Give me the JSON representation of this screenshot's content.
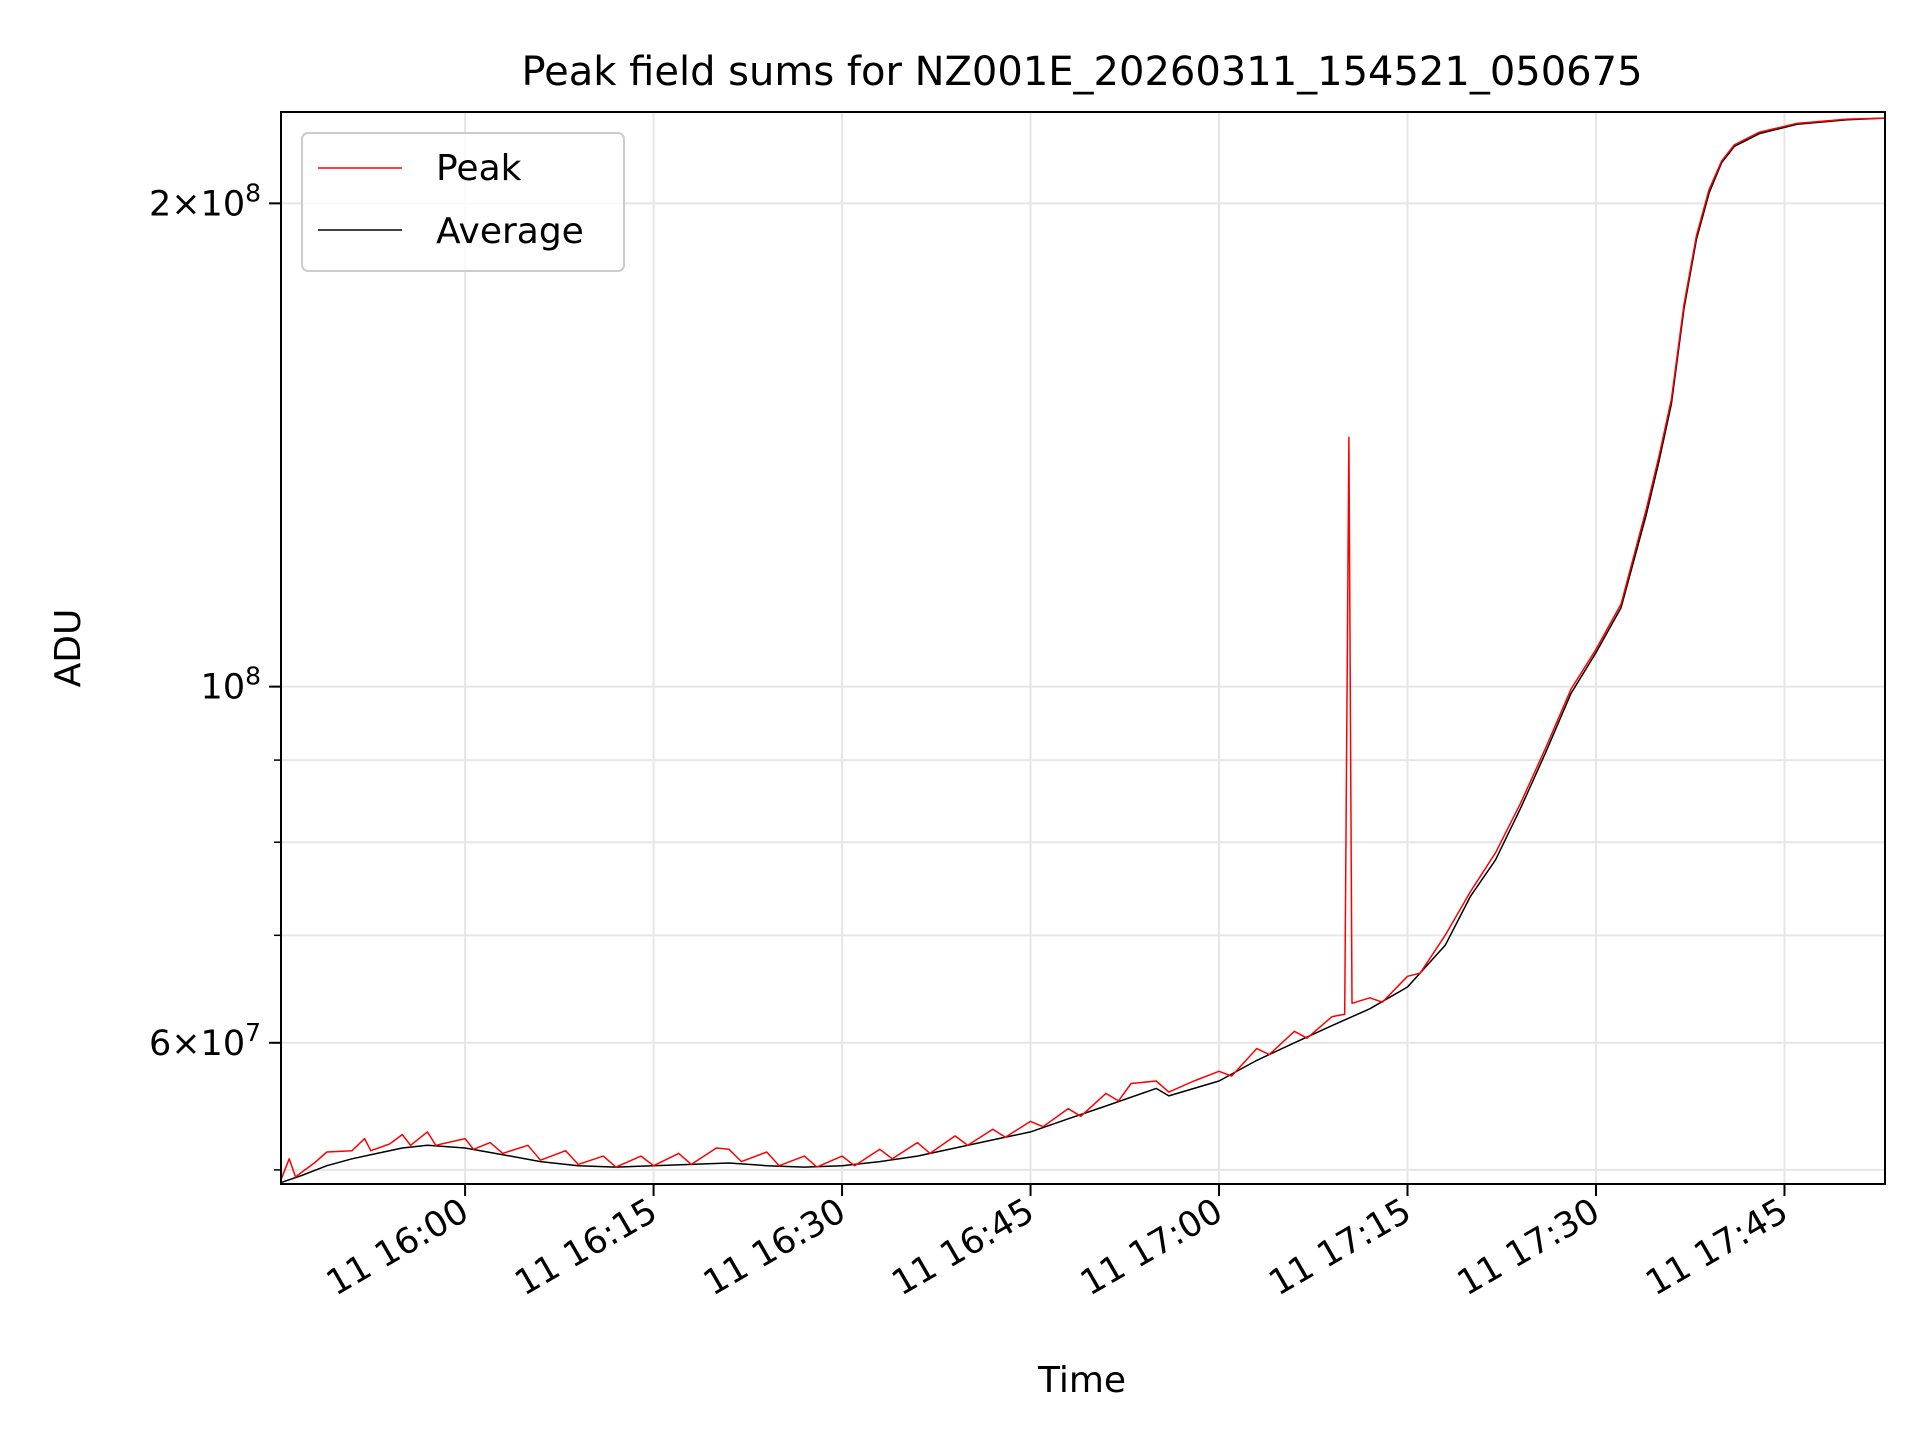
{
  "chart_data": {
    "type": "line",
    "title": "Peak field sums for NZ001E_20260311_154521_050675",
    "xlabel": "Time",
    "ylabel": "ADU",
    "xscale": "time",
    "yscale": "log",
    "xlim": [
      "2026-03-11 15:45:21",
      "2026-03-11 17:53:00"
    ],
    "ylim": [
      49000000,
      228000000
    ],
    "grid": true,
    "legend": "upper left",
    "xticks": [
      {
        "t": "2026-03-11 16:00",
        "label": "11 16:00"
      },
      {
        "t": "2026-03-11 16:15",
        "label": "11 16:15"
      },
      {
        "t": "2026-03-11 16:30",
        "label": "11 16:30"
      },
      {
        "t": "2026-03-11 16:45",
        "label": "11 16:45"
      },
      {
        "t": "2026-03-11 17:00",
        "label": "11 17:00"
      },
      {
        "t": "2026-03-11 17:15",
        "label": "11 17:15"
      },
      {
        "t": "2026-03-11 17:30",
        "label": "11 17:30"
      },
      {
        "t": "2026-03-11 17:45",
        "label": "11 17:45"
      }
    ],
    "yticks_major": [
      {
        "v": 60000000,
        "mant": "6",
        "exp": "7"
      },
      {
        "v": 100000000,
        "mant": "",
        "exp": "8"
      },
      {
        "v": 200000000,
        "mant": "2",
        "exp": "8"
      }
    ],
    "yticks_minor": [
      50000000,
      70000000,
      80000000,
      90000000
    ],
    "series": [
      {
        "name": "Average",
        "color": "#000000",
        "points": [
          [
            "2026-03-11 15:45:21",
            49100000.0
          ],
          [
            "2026-03-11 15:47:00",
            49600000.0
          ],
          [
            "2026-03-11 15:49:00",
            50300000.0
          ],
          [
            "2026-03-11 15:51:00",
            50800000.0
          ],
          [
            "2026-03-11 15:53:00",
            51200000.0
          ],
          [
            "2026-03-11 15:55:00",
            51600000.0
          ],
          [
            "2026-03-11 15:57:00",
            51800000.0
          ],
          [
            "2026-03-11 16:00:00",
            51600000.0
          ],
          [
            "2026-03-11 16:03:00",
            51100000.0
          ],
          [
            "2026-03-11 16:06:00",
            50600000.0
          ],
          [
            "2026-03-11 16:09:00",
            50300000.0
          ],
          [
            "2026-03-11 16:12:00",
            50200000.0
          ],
          [
            "2026-03-11 16:15:00",
            50300000.0
          ],
          [
            "2026-03-11 16:18:00",
            50400000.0
          ],
          [
            "2026-03-11 16:21:00",
            50500000.0
          ],
          [
            "2026-03-11 16:24:00",
            50300000.0
          ],
          [
            "2026-03-11 16:27:00",
            50200000.0
          ],
          [
            "2026-03-11 16:30:00",
            50300000.0
          ],
          [
            "2026-03-11 16:33:00",
            50600000.0
          ],
          [
            "2026-03-11 16:36:00",
            51000000.0
          ],
          [
            "2026-03-11 16:39:00",
            51600000.0
          ],
          [
            "2026-03-11 16:42:00",
            52200000.0
          ],
          [
            "2026-03-11 16:45:00",
            52800000.0
          ],
          [
            "2026-03-11 16:48:00",
            53800000.0
          ],
          [
            "2026-03-11 16:51:00",
            54800000.0
          ],
          [
            "2026-03-11 16:55:00",
            56200000.0
          ],
          [
            "2026-03-11 16:56:00",
            55600000.0
          ],
          [
            "2026-03-11 17:00:00",
            56800000.0
          ],
          [
            "2026-03-11 17:03:00",
            58500000.0
          ],
          [
            "2026-03-11 17:06:00",
            60000000.0
          ],
          [
            "2026-03-11 17:09:00",
            61500000.0
          ],
          [
            "2026-03-11 17:12:00",
            63000000.0
          ],
          [
            "2026-03-11 17:15:00",
            65000000.0
          ],
          [
            "2026-03-11 17:18:00",
            69000000.0
          ],
          [
            "2026-03-11 17:20:00",
            74000000.0
          ],
          [
            "2026-03-11 17:22:00",
            78000000.0
          ],
          [
            "2026-03-11 17:24:00",
            84000000.0
          ],
          [
            "2026-03-11 17:26:00",
            91000000.0
          ],
          [
            "2026-03-11 17:28:00",
            99000000.0
          ],
          [
            "2026-03-11 17:30:00",
            105000000.0
          ],
          [
            "2026-03-11 17:32:00",
            112000000.0
          ],
          [
            "2026-03-11 17:34:00",
            128000000.0
          ],
          [
            "2026-03-11 17:35:00",
            138000000.0
          ],
          [
            "2026-03-11 17:36:00",
            150000000.0
          ],
          [
            "2026-03-11 17:37:00",
            172000000.0
          ],
          [
            "2026-03-11 17:38:00",
            190000000.0
          ],
          [
            "2026-03-11 17:39:00",
            203000000.0
          ],
          [
            "2026-03-11 17:40:00",
            212000000.0
          ],
          [
            "2026-03-11 17:41:00",
            217000000.0
          ],
          [
            "2026-03-11 17:43:00",
            221000000.0
          ],
          [
            "2026-03-11 17:46:00",
            224000000.0
          ],
          [
            "2026-03-11 17:50:00",
            225500000.0
          ],
          [
            "2026-03-11 17:53:00",
            226000000.0
          ]
        ]
      },
      {
        "name": "Peak",
        "color": "#ff0000",
        "points": [
          [
            "2026-03-11 15:45:21",
            49300000.0
          ],
          [
            "2026-03-11 15:46:00",
            50800000.0
          ],
          [
            "2026-03-11 15:46:30",
            49500000.0
          ],
          [
            "2026-03-11 15:48:00",
            50500000.0
          ],
          [
            "2026-03-11 15:49:00",
            51300000.0
          ],
          [
            "2026-03-11 15:51:00",
            51400000.0
          ],
          [
            "2026-03-11 15:52:00",
            52300000.0
          ],
          [
            "2026-03-11 15:52:30",
            51400000.0
          ],
          [
            "2026-03-11 15:54:00",
            51900000.0
          ],
          [
            "2026-03-11 15:55:00",
            52600000.0
          ],
          [
            "2026-03-11 15:55:40",
            51800000.0
          ],
          [
            "2026-03-11 15:57:00",
            52800000.0
          ],
          [
            "2026-03-11 15:57:40",
            51800000.0
          ],
          [
            "2026-03-11 16:00:00",
            52300000.0
          ],
          [
            "2026-03-11 16:00:40",
            51500000.0
          ],
          [
            "2026-03-11 16:02:00",
            52000000.0
          ],
          [
            "2026-03-11 16:03:00",
            51200000.0
          ],
          [
            "2026-03-11 16:05:00",
            51800000.0
          ],
          [
            "2026-03-11 16:06:00",
            50700000.0
          ],
          [
            "2026-03-11 16:08:00",
            51400000.0
          ],
          [
            "2026-03-11 16:09:00",
            50400000.0
          ],
          [
            "2026-03-11 16:11:00",
            51000000.0
          ],
          [
            "2026-03-11 16:12:00",
            50200000.0
          ],
          [
            "2026-03-11 16:14:00",
            51000000.0
          ],
          [
            "2026-03-11 16:15:00",
            50300000.0
          ],
          [
            "2026-03-11 16:17:00",
            51200000.0
          ],
          [
            "2026-03-11 16:18:00",
            50400000.0
          ],
          [
            "2026-03-11 16:20:00",
            51600000.0
          ],
          [
            "2026-03-11 16:21:00",
            51500000.0
          ],
          [
            "2026-03-11 16:22:00",
            50600000.0
          ],
          [
            "2026-03-11 16:24:00",
            51300000.0
          ],
          [
            "2026-03-11 16:25:00",
            50300000.0
          ],
          [
            "2026-03-11 16:27:00",
            51000000.0
          ],
          [
            "2026-03-11 16:28:00",
            50200000.0
          ],
          [
            "2026-03-11 16:30:00",
            51000000.0
          ],
          [
            "2026-03-11 16:31:00",
            50300000.0
          ],
          [
            "2026-03-11 16:33:00",
            51500000.0
          ],
          [
            "2026-03-11 16:34:00",
            50800000.0
          ],
          [
            "2026-03-11 16:36:00",
            52000000.0
          ],
          [
            "2026-03-11 16:37:00",
            51200000.0
          ],
          [
            "2026-03-11 16:39:00",
            52500000.0
          ],
          [
            "2026-03-11 16:40:00",
            51800000.0
          ],
          [
            "2026-03-11 16:42:00",
            53000000.0
          ],
          [
            "2026-03-11 16:43:00",
            52400000.0
          ],
          [
            "2026-03-11 16:45:00",
            53600000.0
          ],
          [
            "2026-03-11 16:46:00",
            53200000.0
          ],
          [
            "2026-03-11 16:48:00",
            54600000.0
          ],
          [
            "2026-03-11 16:49:00",
            54000000.0
          ],
          [
            "2026-03-11 16:51:00",
            55800000.0
          ],
          [
            "2026-03-11 16:52:00",
            55200000.0
          ],
          [
            "2026-03-11 16:53:00",
            56600000.0
          ],
          [
            "2026-03-11 16:55:00",
            56800000.0
          ],
          [
            "2026-03-11 16:56:00",
            55900000.0
          ],
          [
            "2026-03-11 16:58:00",
            56800000.0
          ],
          [
            "2026-03-11 17:00:00",
            57600000.0
          ],
          [
            "2026-03-11 17:01:00",
            57200000.0
          ],
          [
            "2026-03-11 17:03:00",
            59500000.0
          ],
          [
            "2026-03-11 17:04:00",
            59000000.0
          ],
          [
            "2026-03-11 17:06:00",
            61000000.0
          ],
          [
            "2026-03-11 17:07:00",
            60400000.0
          ],
          [
            "2026-03-11 17:09:00",
            62300000.0
          ],
          [
            "2026-03-11 17:10:00",
            62500000.0
          ],
          [
            "2026-03-11 17:10:20",
            143000000.0
          ],
          [
            "2026-03-11 17:10:35",
            63500000.0
          ],
          [
            "2026-03-11 17:12:00",
            64000000.0
          ],
          [
            "2026-03-11 17:13:00",
            63600000.0
          ],
          [
            "2026-03-11 17:15:00",
            66000000.0
          ],
          [
            "2026-03-11 17:16:00",
            66300000.0
          ],
          [
            "2026-03-11 17:18:00",
            70000000.0
          ],
          [
            "2026-03-11 17:20:00",
            74500000.0
          ],
          [
            "2026-03-11 17:22:00",
            78800000.0
          ],
          [
            "2026-03-11 17:24:00",
            84600000.0
          ],
          [
            "2026-03-11 17:26:00",
            91600000.0
          ],
          [
            "2026-03-11 17:28:00",
            99600000.0
          ],
          [
            "2026-03-11 17:30:00",
            105500000.0
          ],
          [
            "2026-03-11 17:32:00",
            112600000.0
          ],
          [
            "2026-03-11 17:34:00",
            129000000.0
          ],
          [
            "2026-03-11 17:35:00",
            139000000.0
          ],
          [
            "2026-03-11 17:36:00",
            151000000.0
          ],
          [
            "2026-03-11 17:37:00",
            173000000.0
          ],
          [
            "2026-03-11 17:38:00",
            191000000.0
          ],
          [
            "2026-03-11 17:39:00",
            204000000.0
          ],
          [
            "2026-03-11 17:40:00",
            212500000.0
          ],
          [
            "2026-03-11 17:41:00",
            217500000.0
          ],
          [
            "2026-03-11 17:43:00",
            221500000.0
          ],
          [
            "2026-03-11 17:46:00",
            224300000.0
          ],
          [
            "2026-03-11 17:50:00",
            225700000.0
          ],
          [
            "2026-03-11 17:53:00",
            226000000.0
          ]
        ]
      }
    ]
  },
  "legend": {
    "items": [
      {
        "label": "Peak",
        "color": "#ff0000"
      },
      {
        "label": "Average",
        "color": "#000000"
      }
    ]
  }
}
